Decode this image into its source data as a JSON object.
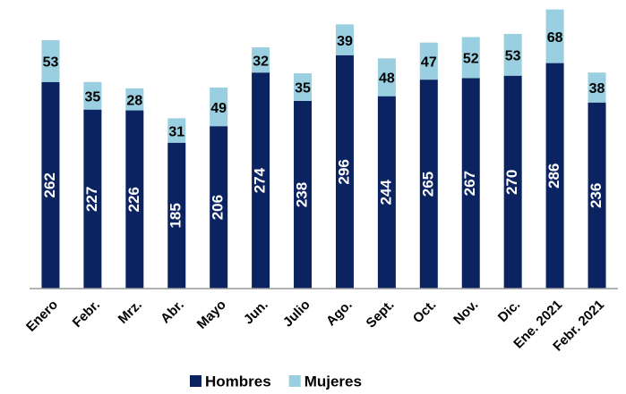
{
  "chart_data": {
    "type": "stacked_bar",
    "categories": [
      "Enero",
      "Febr.",
      "Mrz.",
      "Abr.",
      "Mayo",
      "Jun.",
      "Julio",
      "Ago.",
      "Sept.",
      "Oct.",
      "Nov.",
      "Dic.",
      "Ene. 2021",
      "Febr. 2021"
    ],
    "series": [
      {
        "name": "Hombres",
        "color": "#0b2360",
        "values": [
          262,
          227,
          226,
          185,
          206,
          274,
          238,
          296,
          244,
          265,
          267,
          270,
          286,
          236
        ]
      },
      {
        "name": "Mujeres",
        "color": "#99cfe0",
        "values": [
          53,
          35,
          28,
          31,
          49,
          32,
          35,
          39,
          48,
          47,
          52,
          53,
          68,
          38
        ]
      }
    ],
    "ylim": [
      0,
      366
    ]
  }
}
